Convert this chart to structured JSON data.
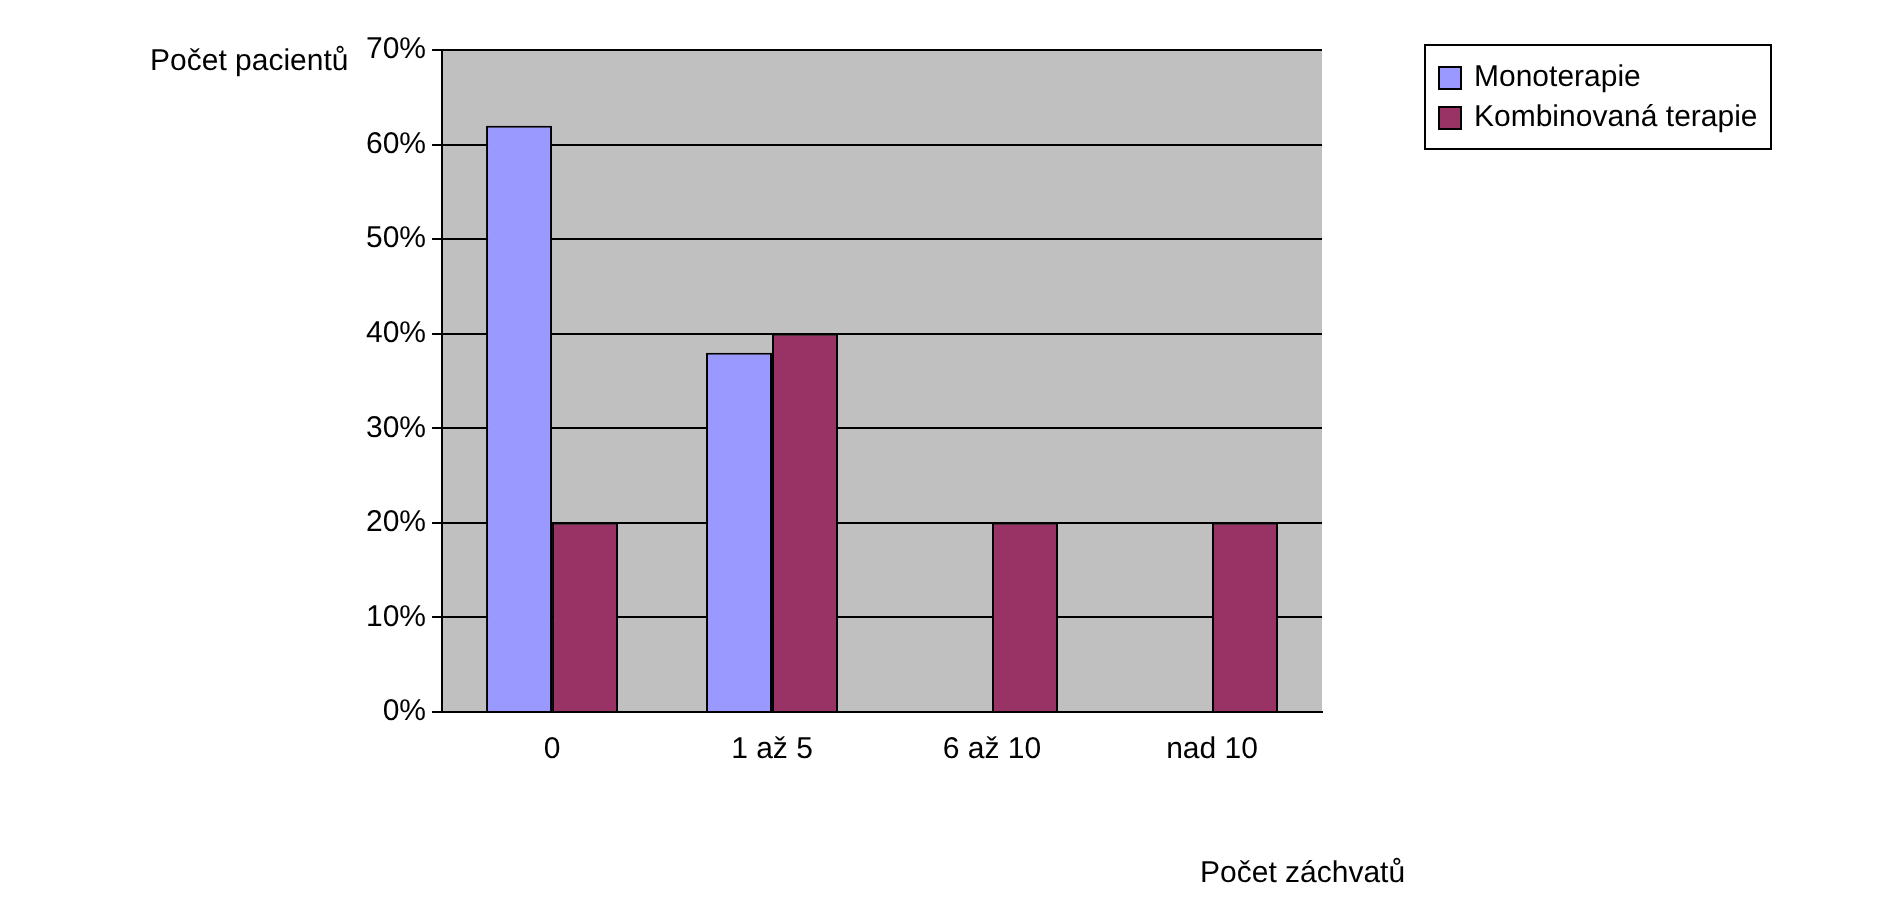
{
  "chart_data": {
    "type": "bar",
    "ylabel": "Počet pacientů",
    "xlabel": "Počet záchvatů",
    "categories": [
      "0",
      "1 až 5",
      "6 až 10",
      "nad 10"
    ],
    "series": [
      {
        "name": "Monoterapie",
        "color": "#9999ff",
        "values": [
          62,
          38,
          0,
          0
        ]
      },
      {
        "name": "Kombinovaná terapie",
        "color": "#993366",
        "values": [
          20,
          40,
          20,
          20
        ]
      }
    ],
    "ylim": [
      0,
      70
    ],
    "yticks": [
      {
        "value": 0,
        "label": "0%"
      },
      {
        "value": 10,
        "label": "10%"
      },
      {
        "value": 20,
        "label": "20%"
      },
      {
        "value": 30,
        "label": "30%"
      },
      {
        "value": 40,
        "label": "40%"
      },
      {
        "value": 50,
        "label": "50%"
      },
      {
        "value": 60,
        "label": "60%"
      },
      {
        "value": 70,
        "label": "70%"
      }
    ],
    "grid": "y",
    "legend": "top right"
  }
}
